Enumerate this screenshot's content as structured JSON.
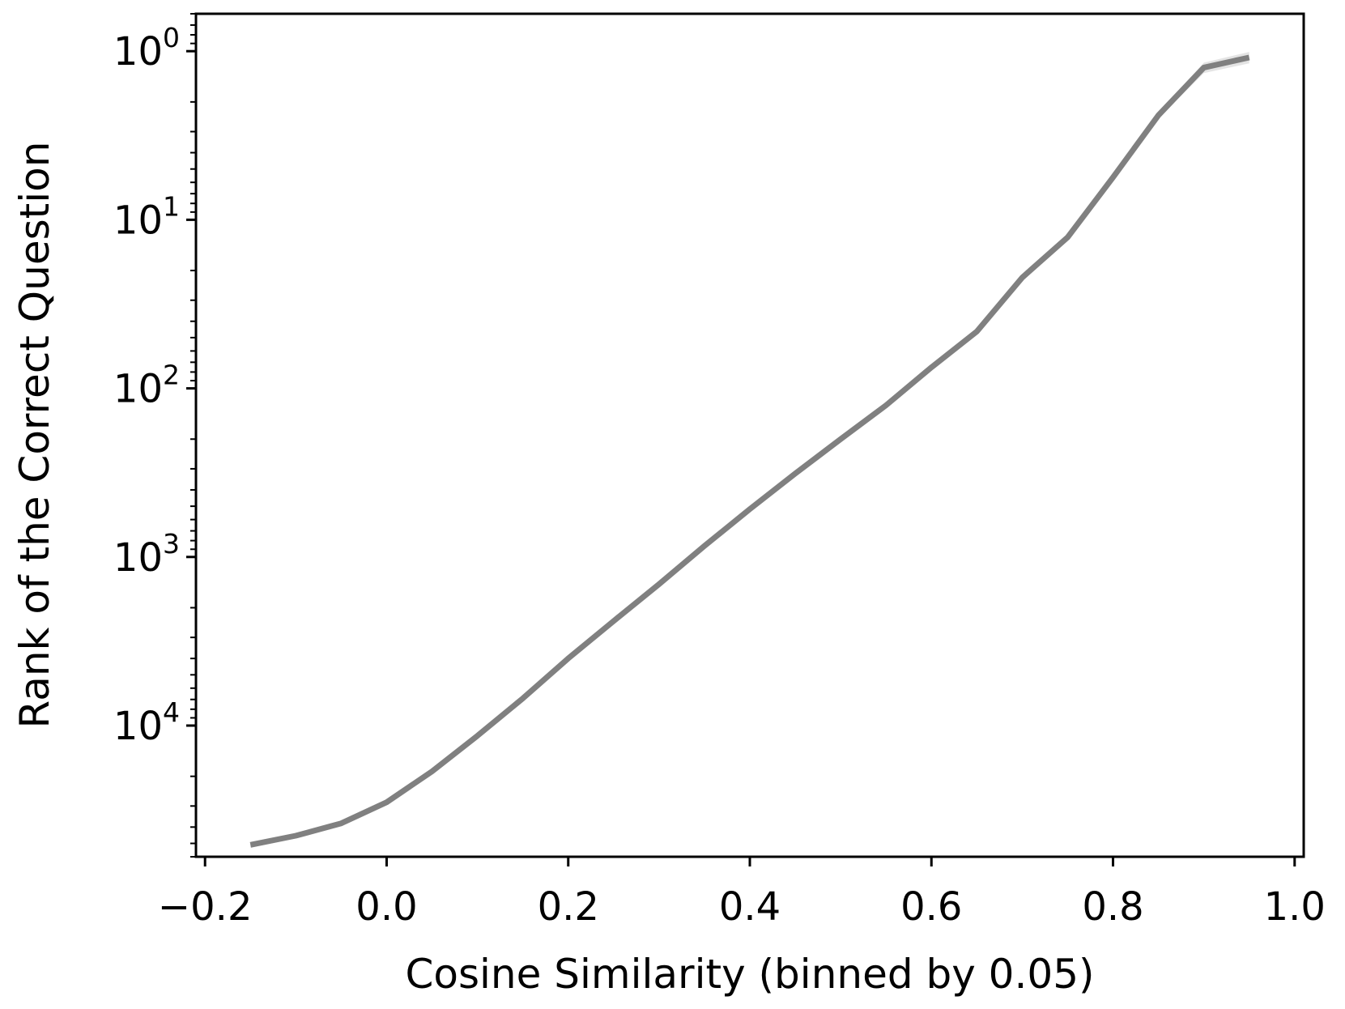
{
  "chart_data": {
    "type": "line",
    "xlabel": "Cosine Similarity (binned by 0.05)",
    "ylabel": "Rank of the Correct Question",
    "y_scale": "log",
    "y_inverted": true,
    "xlim": [
      -0.21,
      1.01
    ],
    "ylim": [
      60000,
      0.6
    ],
    "grid": false,
    "x_ticks": [
      {
        "value": -0.2,
        "label": "−0.2"
      },
      {
        "value": 0.0,
        "label": "0.0"
      },
      {
        "value": 0.2,
        "label": "0.2"
      },
      {
        "value": 0.4,
        "label": "0.4"
      },
      {
        "value": 0.6,
        "label": "0.6"
      },
      {
        "value": 0.8,
        "label": "0.8"
      },
      {
        "value": 1.0,
        "label": "1.0"
      }
    ],
    "y_ticks": [
      {
        "value": 1,
        "base": "10",
        "exp": "0"
      },
      {
        "value": 10,
        "base": "10",
        "exp": "1"
      },
      {
        "value": 100,
        "base": "10",
        "exp": "2"
      },
      {
        "value": 1000,
        "base": "10",
        "exp": "3"
      },
      {
        "value": 10000,
        "base": "10",
        "exp": "4"
      }
    ],
    "series": [
      {
        "color": "#808080",
        "band_color": "#d9d9d9",
        "x": [
          -0.15,
          -0.1,
          -0.05,
          0.0,
          0.05,
          0.1,
          0.15,
          0.2,
          0.25,
          0.3,
          0.35,
          0.4,
          0.45,
          0.5,
          0.55,
          0.6,
          0.65,
          0.7,
          0.75,
          0.8,
          0.85,
          0.9,
          0.95
        ],
        "y": [
          51000,
          45000,
          38000,
          28500,
          18700,
          11500,
          6900,
          4000,
          2400,
          1450,
          860,
          520,
          320,
          200,
          126,
          75,
          46,
          22,
          12.7,
          5.6,
          2.4,
          1.25,
          1.09
        ],
        "y_low": [
          53000,
          46500,
          39000,
          29200,
          19100,
          11800,
          7050,
          4080,
          2450,
          1480,
          880,
          530,
          326,
          204,
          128,
          76.5,
          47,
          22.6,
          13.1,
          5.8,
          2.5,
          1.35,
          1.18
        ],
        "y_high": [
          49000,
          43500,
          37000,
          27800,
          18300,
          11200,
          6750,
          3920,
          2350,
          1420,
          840,
          510,
          314,
          196,
          124,
          73.5,
          45,
          21.4,
          12.3,
          5.4,
          2.3,
          1.17,
          1.01
        ]
      }
    ]
  }
}
